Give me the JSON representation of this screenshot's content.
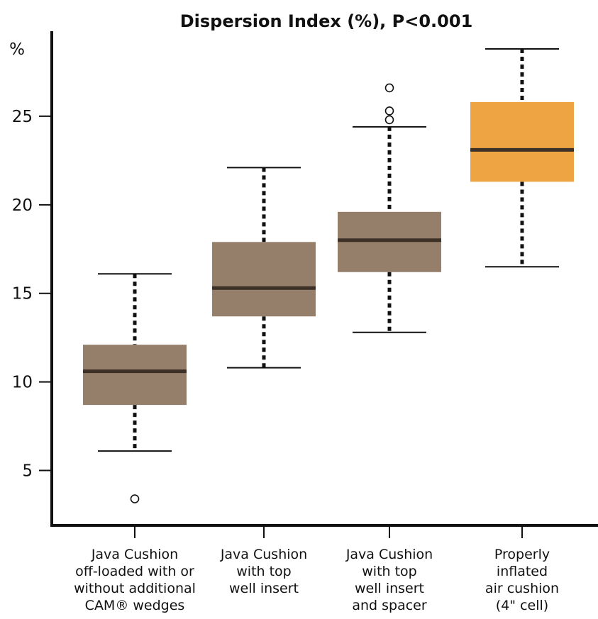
{
  "chart_data": {
    "type": "box",
    "title": "Dispersion Index (%), P<0.001",
    "ylabel": "%",
    "xlabel": "",
    "ylim": [
      1.9,
      29.8
    ],
    "yticks": [
      5,
      10,
      15,
      20,
      25
    ],
    "grid": false,
    "legend": "none",
    "categories": [
      {
        "label_lines": [
          "Java Cushion",
          "off-loaded with or",
          "without additional",
          "CAM® wedges"
        ],
        "whisker_low": 6.1,
        "q1": 8.7,
        "median": 10.6,
        "q3": 12.1,
        "whisker_high": 16.1,
        "outliers": [
          3.4
        ],
        "color": "#957f6b"
      },
      {
        "label_lines": [
          "Java Cushion",
          "with top",
          "well insert"
        ],
        "whisker_low": 10.8,
        "q1": 13.7,
        "median": 15.3,
        "q3": 17.9,
        "whisker_high": 22.1,
        "outliers": [],
        "color": "#957f6b"
      },
      {
        "label_lines": [
          "Java Cushion",
          "with top",
          "well insert",
          "and spacer"
        ],
        "whisker_low": 12.8,
        "q1": 16.2,
        "median": 18.0,
        "q3": 19.6,
        "whisker_high": 24.4,
        "outliers": [
          24.8,
          25.3,
          26.6
        ],
        "color": "#957f6b"
      },
      {
        "label_lines": [
          "Properly",
          "inflated",
          "air cushion",
          "(4\" cell)"
        ],
        "whisker_low": 16.5,
        "q1": 21.3,
        "median": 23.1,
        "q3": 25.8,
        "whisker_high": 28.8,
        "outliers": [],
        "color": "#efa443"
      }
    ],
    "colors": {
      "median_line": "#3d3027",
      "whisker": "#111111",
      "axis": "#111111"
    }
  }
}
